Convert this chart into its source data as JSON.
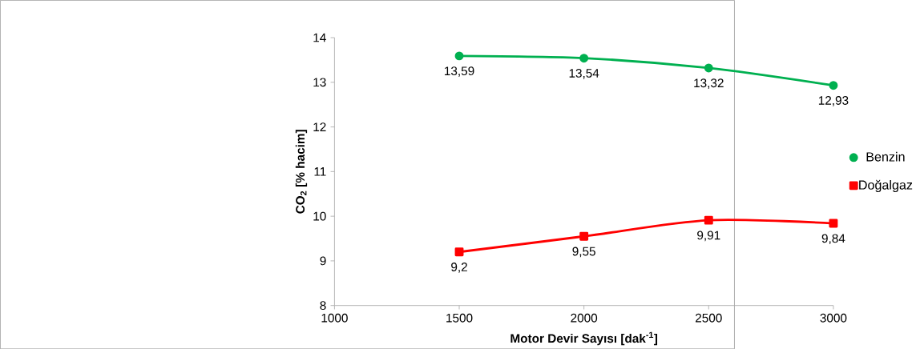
{
  "chart_data": {
    "type": "line",
    "xlabel": "**Motor Devir Sayısı [dak$^{-1}$]**",
    "ylabel": "**CO$_{2}$ [% hacim]**",
    "x": [
      1500,
      2000,
      2500,
      3000
    ],
    "series": [
      {
        "name": "Benzin",
        "color": "#00b050",
        "marker": "circle",
        "values": [
          13.59,
          13.54,
          13.32,
          12.93
        ],
        "value_labels": [
          "13,59",
          "13,54",
          "13,32",
          "12,93"
        ]
      },
      {
        "name": "Doğalgaz",
        "color": "#ff0000",
        "marker": "square",
        "values": [
          9.2,
          9.55,
          9.91,
          9.84
        ],
        "value_labels": [
          "9,2",
          "9,55",
          "9,91",
          "9,84"
        ]
      }
    ],
    "xlim": [
      1000,
      3000
    ],
    "xticks": [
      1000,
      1500,
      2000,
      2500,
      3000
    ],
    "ylim": [
      8,
      14
    ],
    "yticks": [
      8,
      9,
      10,
      11,
      12,
      13,
      14
    ],
    "legend": "right",
    "grid": false
  }
}
